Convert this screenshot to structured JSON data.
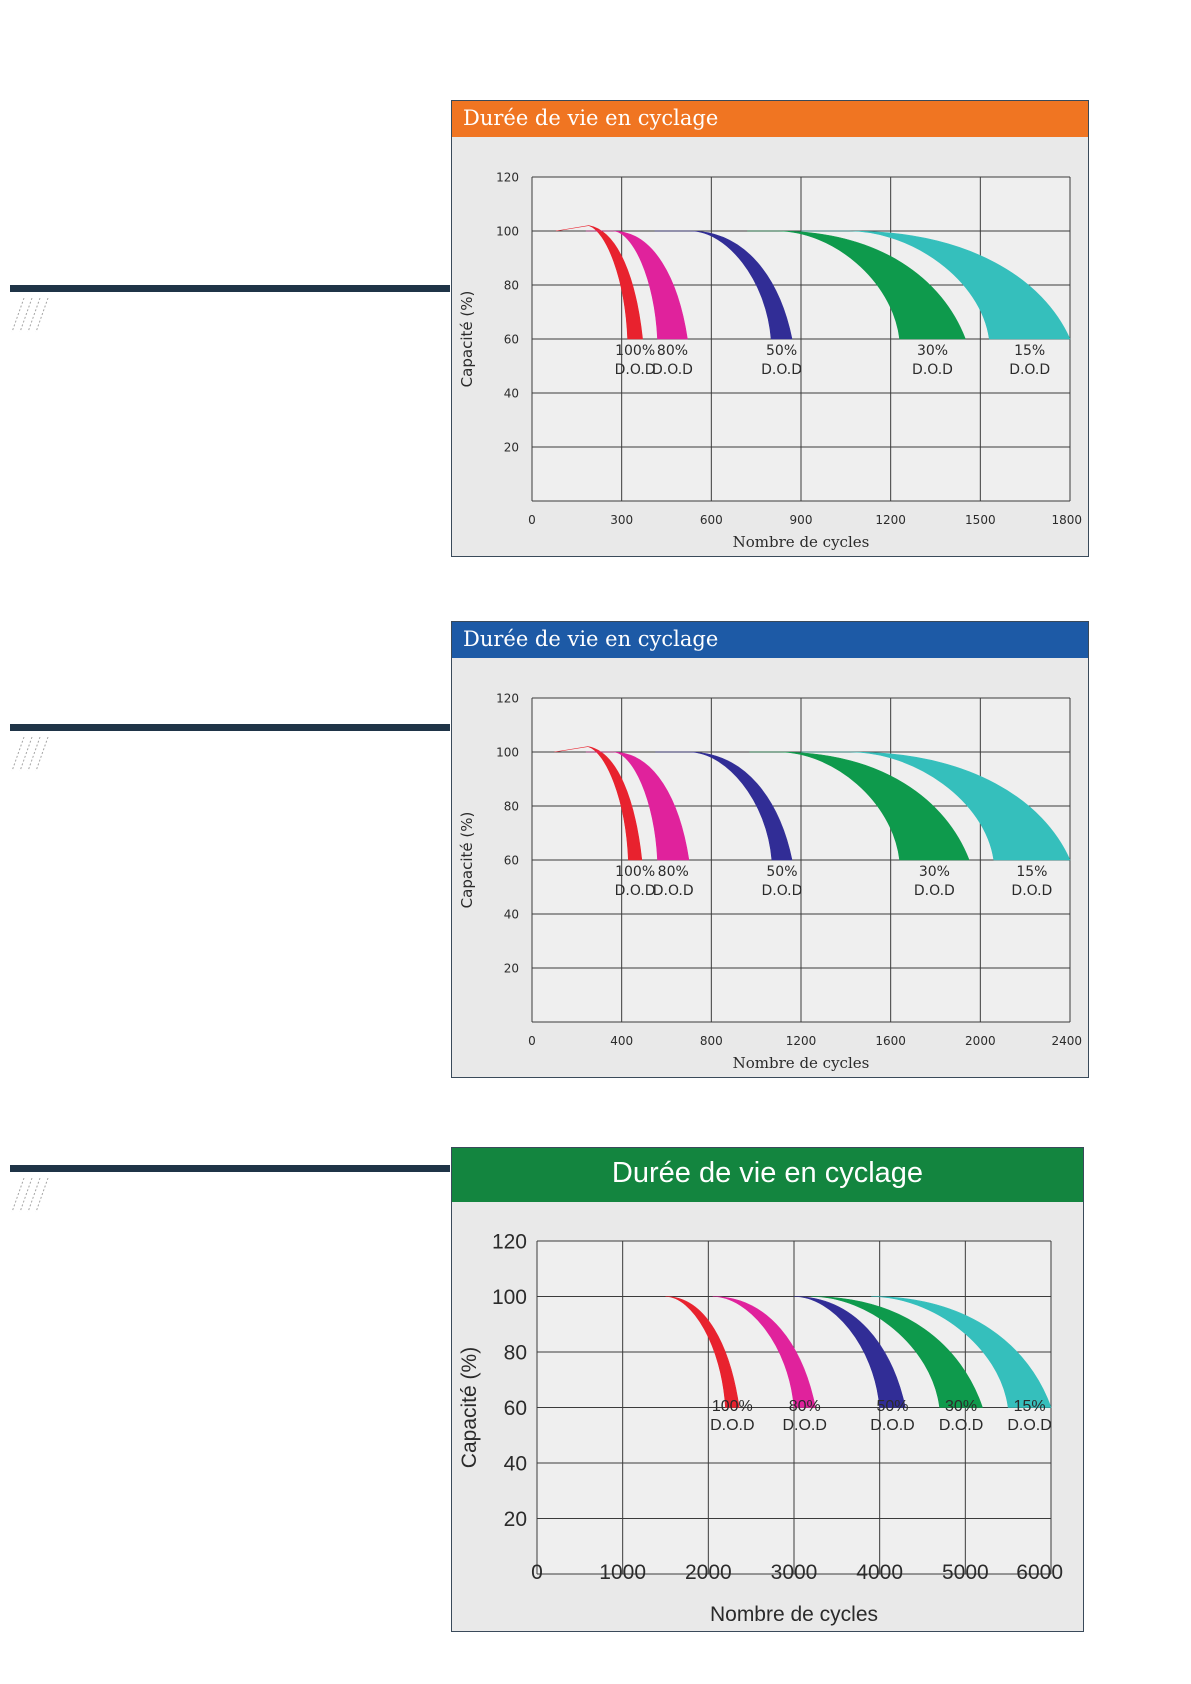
{
  "sections": [
    {
      "header_color": "#f07522",
      "chart_data": {
        "type": "area",
        "title": "Durée de vie en cyclage",
        "xlabel": "Nombre de cycles",
        "ylabel": "Capacité (%)",
        "xlim": [
          0,
          1800
        ],
        "ylim": [
          0,
          120
        ],
        "x_ticks": [
          "0",
          "300",
          "600",
          "900",
          "1200",
          "1500",
          "1800"
        ],
        "y_ticks": [
          "20",
          "40",
          "60",
          "80",
          "100",
          "120"
        ],
        "grid": true,
        "series": [
          {
            "color": "#e8222e",
            "start": 80,
            "mid": 190,
            "end_low": 320,
            "end_high": 370,
            "labels": [
              "100%",
              "D.O.D"
            ]
          },
          {
            "color": "#e0229c",
            "start": 180,
            "mid": 270,
            "end_low": 420,
            "end_high": 520,
            "labels": [
              "80%",
              "D.O.D"
            ]
          },
          {
            "color": "#312d96",
            "start": 410,
            "mid": 530,
            "end_low": 800,
            "end_high": 870,
            "labels": [
              "50%",
              "D.O.D"
            ]
          },
          {
            "color": "#0e9a4c",
            "start": 720,
            "mid": 820,
            "end_low": 1230,
            "end_high": 1450,
            "labels": [
              "30%",
              "D.O.D"
            ]
          },
          {
            "color": "#35bfbc",
            "start": 900,
            "mid": 1060,
            "end_low": 1530,
            "end_high": 1800,
            "labels": [
              "15%",
              "D.O.D"
            ]
          }
        ]
      }
    },
    {
      "header_color": "#1d5aa6",
      "chart_data": {
        "type": "area",
        "title": "Durée de vie en cyclage",
        "xlabel": "Nombre de cycles",
        "ylabel": "Capacité (%)",
        "xlim": [
          0,
          2400
        ],
        "ylim": [
          0,
          120
        ],
        "x_ticks": [
          "0",
          "400",
          "800",
          "1200",
          "1600",
          "2000",
          "2400"
        ],
        "y_ticks": [
          "20",
          "40",
          "60",
          "80",
          "100",
          "120"
        ],
        "grid": true,
        "series": [
          {
            "color": "#e8222e",
            "start": 100,
            "mid": 250,
            "end_low": 430,
            "end_high": 490,
            "labels": [
              "100%",
              "D.O.D"
            ]
          },
          {
            "color": "#e0229c",
            "start": 240,
            "mid": 360,
            "end_low": 560,
            "end_high": 700,
            "labels": [
              "80%",
              "D.O.D"
            ]
          },
          {
            "color": "#312d96",
            "start": 550,
            "mid": 700,
            "end_low": 1070,
            "end_high": 1160,
            "labels": [
              "50%",
              "D.O.D"
            ]
          },
          {
            "color": "#0e9a4c",
            "start": 970,
            "mid": 1100,
            "end_low": 1640,
            "end_high": 1950,
            "labels": [
              "30%",
              "D.O.D"
            ]
          },
          {
            "color": "#35bfbc",
            "start": 1200,
            "mid": 1420,
            "end_low": 2060,
            "end_high": 2400,
            "labels": [
              "15%",
              "D.O.D"
            ]
          }
        ]
      }
    },
    {
      "header_color": "#13853f",
      "chart_data": {
        "type": "area",
        "title": "Durée de vie en cyclage",
        "xlabel": "Nombre de cycles",
        "ylabel": "Capacité (%)",
        "xlim": [
          0,
          6000
        ],
        "ylim": [
          0,
          120
        ],
        "x_ticks": [
          "0",
          "1000",
          "2000",
          "3000",
          "4000",
          "5000",
          "6000"
        ],
        "y_ticks": [
          "20",
          "40",
          "60",
          "80",
          "100",
          "120"
        ],
        "grid": true,
        "series": [
          {
            "color": "#e8222e",
            "start": 1500,
            "mid": 1500,
            "end_low": 2200,
            "end_high": 2360,
            "labels": [
              "100%",
              "D.O.D"
            ]
          },
          {
            "color": "#e0229c",
            "start": 2050,
            "mid": 2050,
            "end_low": 3000,
            "end_high": 3250,
            "labels": [
              "80%",
              "D.O.D"
            ]
          },
          {
            "color": "#312d96",
            "start": 3000,
            "mid": 3000,
            "end_low": 4000,
            "end_high": 4300,
            "labels": [
              "50%",
              "D.O.D"
            ]
          },
          {
            "color": "#0e9a4c",
            "start": 3200,
            "mid": 3200,
            "end_low": 4700,
            "end_high": 5200,
            "labels": [
              "30%",
              "D.O.D"
            ]
          },
          {
            "color": "#35bfbc",
            "start": 3900,
            "mid": 3900,
            "end_low": 5500,
            "end_high": 6000,
            "labels": [
              "15%",
              "D.O.D"
            ]
          }
        ]
      }
    }
  ]
}
